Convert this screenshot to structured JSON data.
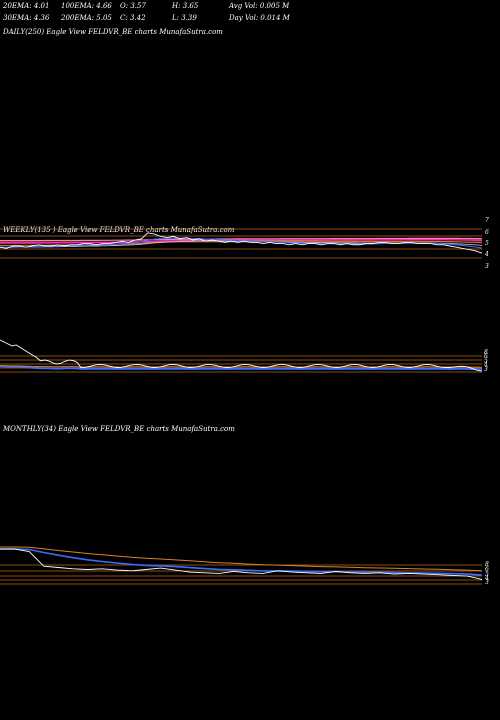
{
  "header": {
    "row1": [
      {
        "label": "20EMA: 4.01"
      },
      {
        "label": "100EMA: 4.66"
      },
      {
        "label": "O: 3.57"
      },
      {
        "label": "H: 3.65"
      },
      {
        "label": "Avg Vol: 0.005 M"
      }
    ],
    "row2": [
      {
        "label": "30EMA: 4.36"
      },
      {
        "label": "200EMA: 5.05"
      },
      {
        "label": "C: 3.42"
      },
      {
        "label": "L: 3.39"
      },
      {
        "label": "Day Vol: 0.014  M"
      }
    ]
  },
  "panels": {
    "daily": {
      "label": "DAILY(250) Eagle   View  FELDVR_BE charts MunafaSutra.com"
    },
    "weekly": {
      "label": "WEEKLY(135                  ) Eagle   View  FELDVR_BE charts MunafaSutra.com"
    },
    "monthly": {
      "label": "MONTHLY(34) Eagle   View  FELDVR_BE charts MunafaSutra.com"
    }
  },
  "colors": {
    "price": "#ffffff",
    "ema_blue": "#3a6cff",
    "ema_magenta": "#ff2ad0",
    "ema_orange": "#d9822b",
    "ema_pink": "#ff7fb0",
    "ema_gray": "#bdbdbd",
    "level_line": "#b5651d"
  },
  "chart_data": [
    {
      "type": "line",
      "name": "weekly",
      "y_ticks": [
        "7",
        "6",
        "5",
        "4",
        "3"
      ],
      "price": [
        3.9,
        3.8,
        4.0,
        4.0,
        3.9,
        4.0,
        4.1,
        4.0,
        4.0,
        4.1,
        4.0,
        4.1,
        4.1,
        4.2,
        4.2,
        4.1,
        4.2,
        4.2,
        4.3,
        4.4,
        4.3,
        4.5,
        4.6,
        5.1,
        5.0,
        4.8,
        4.7,
        4.8,
        4.6,
        4.7,
        4.5,
        4.6,
        4.4,
        4.5,
        4.4,
        4.3,
        4.4,
        4.3,
        4.4,
        4.3,
        4.3,
        4.2,
        4.3,
        4.2,
        4.2,
        4.1,
        4.2,
        4.1,
        4.2,
        4.2,
        4.1,
        4.2,
        4.2,
        4.1,
        4.2,
        4.1,
        4.1,
        4.2,
        4.2,
        4.3,
        4.3,
        4.2,
        4.2,
        4.3,
        4.3,
        4.2,
        4.2,
        4.2,
        4.1,
        4.1,
        4.0,
        3.9,
        3.8,
        3.7,
        3.6,
        3.4
      ]
    },
    {
      "type": "line",
      "name": "monthly",
      "y_ticks": [
        "8",
        "6",
        "5",
        "4",
        "3"
      ],
      "price": [
        8.0,
        8.0,
        7.6,
        5.4,
        5.2,
        5.0,
        4.9,
        5.0,
        4.8,
        4.7,
        4.9,
        5.1,
        4.8,
        4.5,
        4.4,
        4.3,
        4.6,
        4.4,
        4.3,
        4.7,
        4.5,
        4.4,
        4.3,
        4.6,
        4.4,
        4.3,
        4.4,
        4.2,
        4.3,
        4.2,
        4.1,
        4.0,
        3.9,
        3.4
      ]
    }
  ]
}
